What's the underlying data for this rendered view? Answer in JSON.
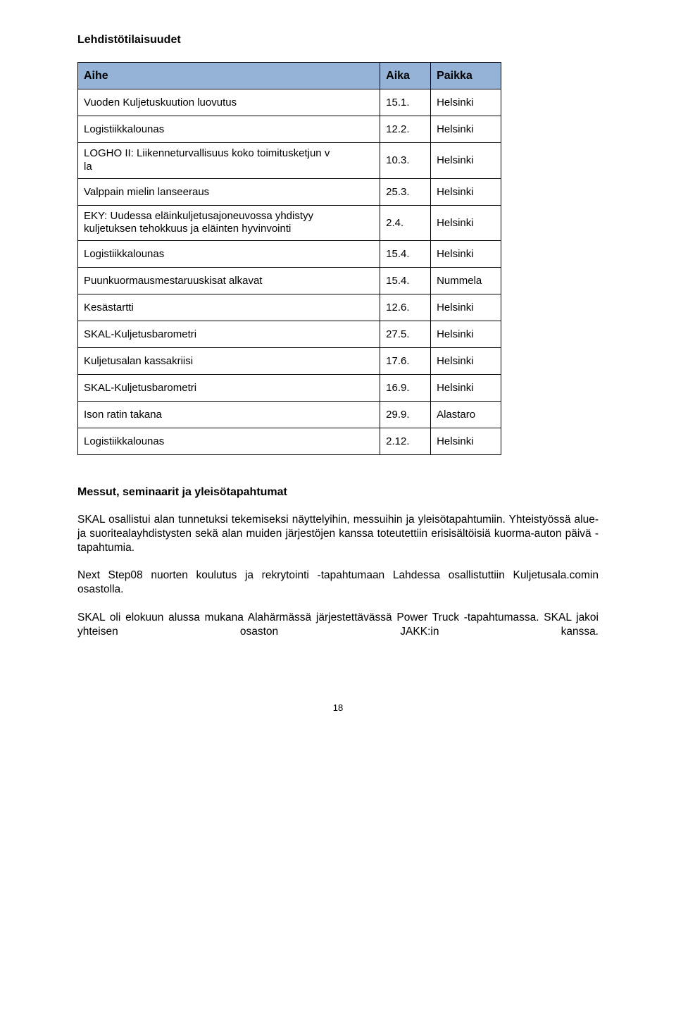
{
  "heading": "Lehdistötilaisuudet",
  "table": {
    "columns": [
      "Aihe",
      "Aika",
      "Paikka"
    ],
    "rows": [
      {
        "topic": "Vuoden Kuljetuskuution luovutus",
        "date": "15.1.",
        "place": "Helsinki"
      },
      {
        "topic": "Logistiikkalounas",
        "date": "12.2.",
        "place": "Helsinki"
      },
      {
        "topic": "LOGHO II: Liikenneturvallisuus koko toimitusketjun vastuulla",
        "topic_short": "LOGHO II: Liikenneturvallisuus koko toimitusketjun v\nla",
        "date": "10.3.",
        "place": "Helsinki"
      },
      {
        "topic": "Valppain mielin lanseeraus",
        "date": "25.3.",
        "place": "Helsinki"
      },
      {
        "topic": "EKY: Uudessa eläinkuljetusajoneuvossa yhdistyy\nkuljetuksen tehokkuus ja eläinten hyvinvointi",
        "date": "2.4.",
        "place": "Helsinki"
      },
      {
        "topic": "Logistiikkalounas",
        "date": "15.4.",
        "place": "Helsinki"
      },
      {
        "topic": "Puunkuormausmestaruuskisat alkavat",
        "date": "15.4.",
        "place": "Nummela"
      },
      {
        "topic": "Kesästartti",
        "date": "12.6.",
        "place": "Helsinki"
      },
      {
        "topic": "SKAL-Kuljetusbarometri",
        "date": "27.5.",
        "place": "Helsinki"
      },
      {
        "topic": "Kuljetusalan kassakriisi",
        "date": "17.6.",
        "place": "Helsinki"
      },
      {
        "topic": "SKAL-Kuljetusbarometri",
        "date": "16.9.",
        "place": "Helsinki"
      },
      {
        "topic": "Ison ratin takana",
        "date": "29.9.",
        "place": "Alastaro"
      },
      {
        "topic": "Logistiikkalounas",
        "date": "2.12.",
        "place": "Helsinki"
      }
    ]
  },
  "subheading": "Messut, seminaarit ja yleisötapahtumat",
  "paragraphs": [
    "SKAL osallistui alan tunnetuksi tekemiseksi näyttelyihin, messuihin ja yleisötapahtumiin. Yhteistyössä alue- ja suoritealayhdistysten sekä alan muiden järjestöjen kanssa toteutettiin erisisältöisiä kuorma-auton päivä -tapahtumia.",
    "Next Step08 nuorten koulutus ja rekrytointi -tapahtumaan Lahdessa osallistuttiin Kuljetusala.comin osastolla.",
    "SKAL oli elokuun alussa mukana Alahärmässä järjestettävässä Power Truck -tapahtumassa. SKAL jakoi yhteisen osaston JAKK:in kanssa."
  ],
  "page_number": "18",
  "colors": {
    "header_bg": "#95b3d7",
    "border": "#000000",
    "text": "#000000",
    "page_bg": "#ffffff"
  }
}
